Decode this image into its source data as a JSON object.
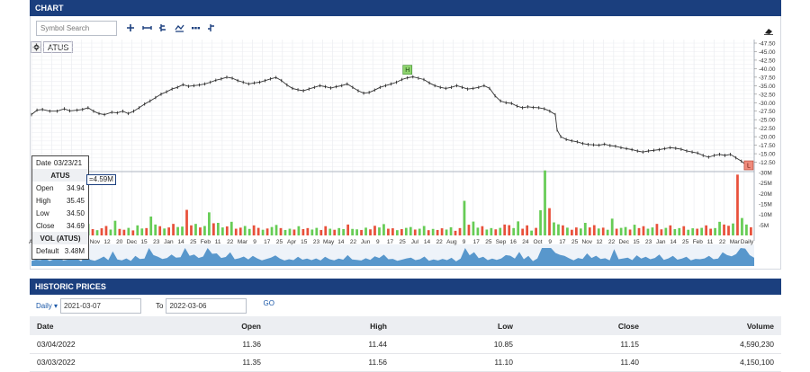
{
  "chart_panel": {
    "title": "CHART"
  },
  "toolbar": {
    "search_placeholder": "Symbol Search",
    "buttons": [
      "plus-icon",
      "horizontal-line-icon",
      "ohlc-icon",
      "indicator-icon",
      "dots-icon",
      "ohlc-alt-icon"
    ]
  },
  "symbol": "ATUS",
  "markers": {
    "high": "H",
    "low": "L"
  },
  "tooltip": {
    "date_label": "Date",
    "date": "03/23/21",
    "symbol": "ATUS",
    "rows": [
      {
        "label": "Open",
        "value": "34.94"
      },
      {
        "label": "High",
        "value": "35.45"
      },
      {
        "label": "Low",
        "value": "34.50"
      },
      {
        "label": "Close",
        "value": "34.69"
      }
    ],
    "vol_title": "VOL (ATUS)",
    "default_label": "Default",
    "default_value": "3.48M",
    "vol_tag": "=4.59M"
  },
  "historic": {
    "title": "HISTORIC PRICES",
    "period": "Daily",
    "from": "2021-03-07",
    "to_label": "To",
    "to": "2022-03-06",
    "go": "GO",
    "columns": [
      "Date",
      "Open",
      "High",
      "Low",
      "Close",
      "Volume"
    ],
    "rows": [
      [
        "03/04/2022",
        "11.36",
        "11.44",
        "10.85",
        "11.15",
        "4,590,230"
      ],
      [
        "03/03/2022",
        "11.35",
        "11.56",
        "11.10",
        "11.40",
        "4,150,100"
      ]
    ]
  },
  "chart_data": {
    "type": "line",
    "title": "",
    "price_axis": {
      "min": 10,
      "max": 47.5,
      "ticks": [
        "47.50",
        "45.00",
        "42.50",
        "40.00",
        "37.50",
        "35.00",
        "32.50",
        "30.00",
        "27.50",
        "25.00",
        "22.50",
        "20.00",
        "17.50",
        "15.00",
        "12.50"
      ]
    },
    "volume_axis": {
      "min": 0,
      "max": 30,
      "unit": "M",
      "ticks": [
        "30M",
        "25M",
        "20M",
        "15M",
        "10M",
        "5M"
      ]
    },
    "x_tick_labels": [
      "Apr",
      "24",
      "Oct",
      "14",
      "22",
      "Nov",
      "12",
      "20",
      "Dec",
      "15",
      "23",
      "Jan",
      "14",
      "25",
      "Feb",
      "11",
      "22",
      "Mar",
      "9",
      "17",
      "25",
      "Apr",
      "15",
      "23",
      "May",
      "14",
      "22",
      "Jun",
      "9",
      "17",
      "25",
      "Jul",
      "14",
      "22",
      "Aug",
      "9",
      "17",
      "25",
      "Sep",
      "16",
      "24",
      "Oct",
      "9",
      "17",
      "25",
      "Nov",
      "12",
      "22",
      "Dec",
      "15",
      "23",
      "Jan",
      "14",
      "25",
      "Feb",
      "11",
      "22",
      "Mar",
      "Daily"
    ],
    "price_points": [
      [
        0,
        26.5
      ],
      [
        3,
        27.8
      ],
      [
        6,
        28
      ],
      [
        10,
        27.5
      ],
      [
        14,
        27.5
      ],
      [
        18,
        28.2
      ],
      [
        21,
        27.6
      ],
      [
        25,
        27.8
      ],
      [
        28,
        28
      ],
      [
        31,
        28.5
      ],
      [
        34,
        27.5
      ],
      [
        37,
        26.8
      ],
      [
        40,
        26.5
      ],
      [
        44,
        27.2
      ],
      [
        47,
        27
      ],
      [
        50,
        27.5
      ],
      [
        53,
        26.8
      ],
      [
        56,
        27.5
      ],
      [
        59,
        28.5
      ],
      [
        62,
        29.6
      ],
      [
        65,
        30.5
      ],
      [
        68,
        31.5
      ],
      [
        71,
        32.5
      ],
      [
        74,
        33.2
      ],
      [
        77,
        34
      ],
      [
        80,
        34.5
      ],
      [
        83,
        35.3
      ],
      [
        86,
        34.8
      ],
      [
        89,
        35
      ],
      [
        92,
        35.2
      ],
      [
        95,
        35.5
      ],
      [
        98,
        36
      ],
      [
        101,
        36.6
      ],
      [
        104,
        37
      ],
      [
        107,
        37.5
      ],
      [
        110,
        37.2
      ],
      [
        113,
        36.5
      ],
      [
        116,
        36
      ],
      [
        119,
        35.5
      ],
      [
        122,
        35.8
      ],
      [
        125,
        36
      ],
      [
        128,
        36.5
      ],
      [
        131,
        37
      ],
      [
        134,
        37.4
      ],
      [
        137,
        36.5
      ],
      [
        140,
        35.2
      ],
      [
        143,
        34.2
      ],
      [
        146,
        33.8
      ],
      [
        149,
        33.5
      ],
      [
        152,
        34
      ],
      [
        155,
        34.5
      ],
      [
        158,
        35
      ],
      [
        161,
        34.7
      ],
      [
        164,
        34.3
      ],
      [
        167,
        34.7
      ],
      [
        170,
        35
      ],
      [
        173,
        35.5
      ],
      [
        176,
        34.5
      ],
      [
        179,
        33.5
      ],
      [
        182,
        32.8
      ],
      [
        185,
        33
      ],
      [
        188,
        33.7
      ],
      [
        191,
        34.5
      ],
      [
        194,
        35
      ],
      [
        197,
        35.5
      ],
      [
        200,
        36
      ],
      [
        203,
        36.8
      ],
      [
        206,
        37.3
      ],
      [
        209,
        37.6
      ],
      [
        212,
        37.2
      ],
      [
        215,
        36.8
      ],
      [
        218,
        35.8
      ],
      [
        221,
        35
      ],
      [
        224,
        34.5
      ],
      [
        227,
        34.2
      ],
      [
        230,
        34.5
      ],
      [
        233,
        35
      ],
      [
        236,
        34.5
      ],
      [
        239,
        34
      ],
      [
        242,
        34.2
      ],
      [
        245,
        34.5
      ],
      [
        248,
        35
      ],
      [
        251,
        34.2
      ],
      [
        254,
        32
      ],
      [
        257,
        30.5
      ],
      [
        260,
        30
      ],
      [
        263,
        29.8
      ],
      [
        266,
        29
      ],
      [
        269,
        28.5
      ],
      [
        272,
        28.8
      ],
      [
        275,
        28.6
      ],
      [
        278,
        28.5
      ],
      [
        281,
        28.2
      ],
      [
        284,
        27.5
      ],
      [
        287,
        26.5
      ],
      [
        288,
        22
      ],
      [
        290,
        20
      ],
      [
        293,
        19.2
      ],
      [
        296,
        18.8
      ],
      [
        299,
        18.5
      ],
      [
        302,
        18
      ],
      [
        305,
        17.7
      ],
      [
        308,
        17.6
      ],
      [
        311,
        17.5
      ],
      [
        314,
        17.8
      ],
      [
        317,
        17.4
      ],
      [
        320,
        17.2
      ],
      [
        323,
        16.8
      ],
      [
        326,
        16.5
      ],
      [
        329,
        16.2
      ],
      [
        332,
        15.8
      ],
      [
        335,
        15.5
      ],
      [
        338,
        15.8
      ],
      [
        341,
        16
      ],
      [
        344,
        16.2
      ],
      [
        347,
        16.5
      ],
      [
        350,
        16.8
      ],
      [
        353,
        16.6
      ],
      [
        356,
        16.3
      ],
      [
        359,
        15.8
      ],
      [
        362,
        15.5
      ],
      [
        365,
        15.2
      ],
      [
        368,
        14.5
      ],
      [
        371,
        14
      ],
      [
        374,
        14.5
      ],
      [
        377,
        14.8
      ],
      [
        380,
        14.5
      ],
      [
        383,
        14.8
      ],
      [
        386,
        13.8
      ],
      [
        389,
        12.8
      ],
      [
        392,
        11.5
      ],
      [
        395,
        11.2
      ]
    ],
    "high_marker_date_index": 206,
    "low_marker_date_index": 393,
    "volume_values": [
      2.5,
      3,
      2.8,
      3.5,
      2.4,
      3.2,
      4.8,
      2.6,
      3,
      4.2,
      3.6,
      2.2,
      5.5,
      3,
      2.5,
      3.4,
      4.5,
      2.8,
      7,
      3.1,
      2.7,
      3.6,
      2.4,
      4.8,
      3.3,
      3.5,
      9,
      5.2,
      4.4,
      3.3,
      3.8,
      5.5,
      4,
      4.2,
      12.2,
      4.8,
      5.5,
      3.8,
      4.5,
      11,
      5.8,
      6,
      3.8,
      4.3,
      6.5,
      3.2,
      3.7,
      4.5,
      3.1,
      4.8,
      3.6,
      2.7,
      3.3,
      4,
      5,
      3.5,
      2.6,
      3.2,
      2.8,
      4.4,
      3,
      3.5,
      2.8,
      3.6,
      2.6,
      4.4,
      3.2,
      2.7,
      3.5,
      3,
      5.2,
      3.1,
      2.9,
      2.6,
      3.7,
      2.9,
      4.6,
      3.8,
      5.4,
      3.2,
      3.4,
      2.5,
      3,
      3.6,
      4,
      2.8,
      3.2,
      4.5,
      2.5,
      3.1,
      2.6,
      3.4,
      2.8,
      3.9,
      2.2,
      3.5,
      16.5,
      5.1,
      6.6,
      3.7,
      4.4,
      2.8,
      3.5,
      2.9,
      3.6,
      5.2,
      4.9,
      3.5,
      6.7,
      3.2,
      4.8,
      2.3,
      3.6,
      12,
      31,
      13,
      6.2,
      5.3,
      4.8,
      3.7,
      2.7,
      3.8,
      3.3,
      6,
      3.8,
      4.9,
      3.3,
      3.7,
      2.7,
      8,
      3.2,
      3.6,
      4,
      2.8,
      5.1,
      3.5,
      4.4,
      3.2,
      3.8,
      5.5,
      2.9,
      3.6,
      4.8,
      3,
      3.5,
      4.4,
      2.7,
      3.4,
      3.2,
      3.6,
      4.8,
      3.2,
      3.5,
      6.5,
      5.2,
      4.6,
      5.7,
      29,
      8.3,
      5.2,
      3.9
    ],
    "ylim": [
      10,
      47.5
    ]
  }
}
